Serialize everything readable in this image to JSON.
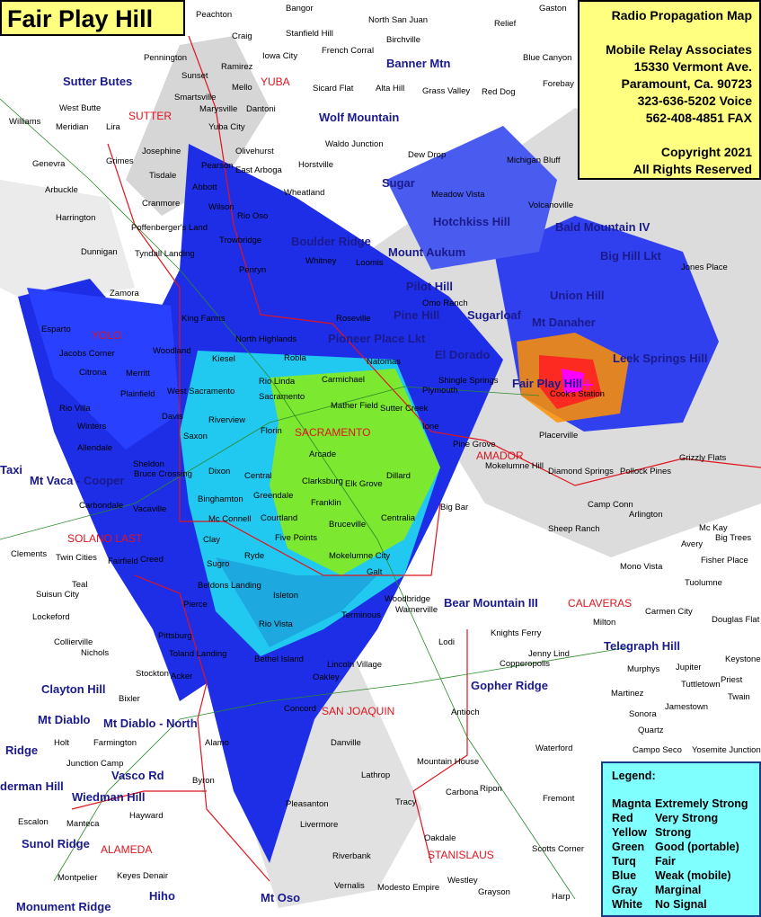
{
  "title": "Fair Play Hill",
  "info": {
    "heading": "Radio Propagation Map",
    "company": "Mobile Relay Associates",
    "address": "15330 Vermont Ave.",
    "city": "Paramount, Ca. 90723",
    "voice": "323-636-5202 Voice",
    "fax": "562-408-4851 FAX",
    "copyright": "Copyright 2021",
    "rights": "All Rights Reserved"
  },
  "legend": {
    "heading": "Legend:",
    "rows": [
      {
        "color": "Magnta",
        "meaning": "Extremely Strong",
        "hex": "#ff00ff"
      },
      {
        "color": "Red",
        "meaning": "Very Strong",
        "hex": "#ff0000"
      },
      {
        "color": "Yellow",
        "meaning": "Strong",
        "hex": "#ffff00"
      },
      {
        "color": "Green",
        "meaning": "Good (portable)",
        "hex": "#80ff00"
      },
      {
        "color": "Turq",
        "meaning": "Fair",
        "hex": "#00ffff"
      },
      {
        "color": "Blue",
        "meaning": "Weak (mobile)",
        "hex": "#0000ff"
      },
      {
        "color": "Gray",
        "meaning": "Marginal",
        "hex": "#a0a0a0"
      },
      {
        "color": "White",
        "meaning": "No Signal",
        "hex": "#ffffff"
      }
    ]
  },
  "transmitter": "Fair Play Hill",
  "sites": [
    "Sutter Butes",
    "Banner Mtn",
    "Wolf Mountain",
    "Boulder Ridge",
    "Hotchkiss Hill",
    "Bald Mountain IV",
    "Big Hill Lkt",
    "Union Hill",
    "Mount Aukum",
    "Pilot Hill",
    "Pine Hill",
    "Pioneer Place Lkt",
    "Sugarloaf",
    "Mt Danaher",
    "Leek Springs Hill",
    "Fair Play Hill",
    "Mt Vaca - Cooper",
    "Clayton Hill",
    "Mt Diablo",
    "Mt Diablo - North",
    "Ridge",
    "Vasco Rd",
    "derman Hill",
    "Wiedman Hill",
    "Sunol Ridge",
    "Monument Ridge",
    "Hiho",
    "Mt Oso",
    "Bear Mountain III",
    "Gopher Ridge",
    "Telegraph Hill",
    "Sugar",
    "El Dorado",
    "Taxi"
  ],
  "counties": [
    "SUTTER",
    "YUBA",
    "YOLO",
    "SACRAMENTO",
    "AMADOR",
    "SOLANO LAST",
    "CALAVERAS",
    "SAN JOAQUIN",
    "ALAMEDA",
    "STANISLAUS"
  ],
  "towns": [
    "Peachton",
    "Bangor",
    "North San Juan",
    "Relief",
    "Gaston",
    "Pennington",
    "Craig",
    "Iowa City",
    "Stanfield Hill",
    "Birchville",
    "French Corral",
    "Blue Canyon",
    "Ramirez",
    "Sunset",
    "Mello",
    "Smartsville",
    "Sicard Flat",
    "Alta Hill",
    "Grass Valley",
    "Red Dog",
    "Forebay",
    "West Butte",
    "Meridian",
    "Lira",
    "Marysville",
    "Dantoni",
    "Yuba City",
    "Williams",
    "Grimes",
    "Josephine",
    "Olivehurst",
    "Waldo Junction",
    "Dew Drop",
    "Michigan Bluff",
    "Genevra",
    "Tisdale",
    "Pearson",
    "East Arboga",
    "Horstville",
    "Arbuckle",
    "Abbott",
    "Wheatland",
    "Cranmore",
    "Wilson",
    "Rio Oso",
    "Meadow Vista",
    "Volcanoville",
    "Harrington",
    "Poffenberger's Land",
    "Trowbridge",
    "Dunnigan",
    "Tyndall Landing",
    "Whitney",
    "Loomis",
    "Zamora",
    "Penryn",
    "Jones Place",
    "King Farms",
    "Roseville",
    "Esparto",
    "North Highlands",
    "Jacobs Corner",
    "Woodland",
    "Robla",
    "Kiesel",
    "Natomas",
    "Citrona",
    "Merritt",
    "Rio Linda",
    "Carmichael",
    "Plainfield",
    "West Sacramento",
    "Sacramento",
    "Mather Field",
    "Rio Villa",
    "Davis",
    "Winters",
    "Florin",
    "Saxon",
    "Riverview",
    "Allendale",
    "Arcade",
    "Sheldon",
    "Dixon",
    "Central",
    "Clarksburg",
    "Elk Grove",
    "Dillard",
    "Carbondale",
    "Vacaville",
    "Binghamton",
    "Greendale",
    "Franklin",
    "Mc Connell",
    "Courtland",
    "Bruceville",
    "Centralia",
    "Clay",
    "Five Points",
    "Twin Cities",
    "Fairfield",
    "Creed",
    "Sugro",
    "Ryde",
    "Mokelumne City",
    "Galt",
    "Clements",
    "Suisun City",
    "Teal",
    "Beldons Landing",
    "Isleton",
    "Woodbridge",
    "Lockeford",
    "Pierce",
    "Rio Vista",
    "Terminous",
    "Lodi",
    "Collierville",
    "Nichols",
    "Pittsburg",
    "Toland Landing",
    "Bethel Island",
    "Lincoln Village",
    "Acker",
    "Oakley",
    "Bixler",
    "Stockton",
    "Concord",
    "Antioch",
    "Holt",
    "Farmington",
    "Alamo",
    "Junction Camp",
    "Byron",
    "Danville",
    "Mountain House",
    "Lathrop",
    "Escalon",
    "Manteca",
    "Hayward",
    "Pleasanton",
    "Livermore",
    "Tracy",
    "Carbona",
    "Ripon",
    "Riverbank",
    "Oakdale",
    "Vernalis",
    "Modesto Empire",
    "Westley",
    "Grayson",
    "Harp",
    "Keyes Denair",
    "Montpelier",
    "Scotts Corner",
    "Fremont",
    "Waterford",
    "Warnerville",
    "Knights Ferry",
    "Copperopolis",
    "Jenny Lind",
    "Milton",
    "Carmen City",
    "Douglas Flat",
    "Murphys",
    "Jupiter",
    "Tuttletown",
    "Martinez",
    "Sonora",
    "Jamestown",
    "Quartz",
    "Campo Seco",
    "Yosemite Junction",
    "Keystone",
    "Priest",
    "Twain",
    "Mono Vista",
    "Tuolumne",
    "Fisher Place",
    "Avery",
    "Mc Kay",
    "Big Trees",
    "Arlington",
    "Camp Conn",
    "Sheep Ranch",
    "Mokelumne Hill",
    "Big Bar",
    "Pine Grove",
    "Ione",
    "Sutter Creek",
    "Plymouth",
    "Shingle Springs",
    "Placerville",
    "Diamond Springs",
    "Pollock Pines",
    "Grizzly Flats",
    "Omo Ranch",
    "Cook's Station",
    "Bruce Crossing"
  ]
}
